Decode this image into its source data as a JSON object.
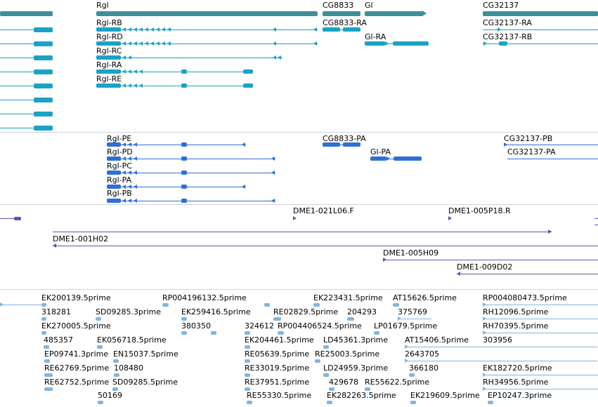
{
  "colors": {
    "gene": "#3e8f9a",
    "transcript": "#1aa3c4",
    "protein": "#2f6fd6",
    "clone": "#6a4fb0",
    "est": "#7fb6e2",
    "separator": "#cfd4dc"
  },
  "genes": {
    "items": [
      {
        "label": "Rgl"
      },
      {
        "label": "CG8833"
      },
      {
        "label": "Gl"
      },
      {
        "label": "CG32137"
      }
    ]
  },
  "transcripts": {
    "items": [
      {
        "label": "Rgl-RB"
      },
      {
        "label": "Rgl-RD"
      },
      {
        "label": "Rgl-RC"
      },
      {
        "label": "Rgl-RA"
      },
      {
        "label": "Rgl-RE"
      },
      {
        "label": "CG8833-RA"
      },
      {
        "label": "Gl-RA"
      },
      {
        "label": "CG32137-RA"
      },
      {
        "label": "CG32137-RB"
      }
    ]
  },
  "proteins": {
    "items": [
      {
        "label": "Rgl-PE"
      },
      {
        "label": "Rgl-PD"
      },
      {
        "label": "Rgl-PC"
      },
      {
        "label": "Rgl-PA"
      },
      {
        "label": "Rgl-PB"
      },
      {
        "label": "CG8833-PA"
      },
      {
        "label": "Gl-PA"
      },
      {
        "label": "CG32137-PB"
      },
      {
        "label": "CG32137-PA"
      }
    ]
  },
  "clones": {
    "items": [
      {
        "label": "DME1-021L06.F"
      },
      {
        "label": "DME1-005P18.R"
      },
      {
        "label": "DME1-001H02"
      },
      {
        "label": "DME1-005H09"
      },
      {
        "label": "DME1-009D02"
      }
    ]
  },
  "ests": {
    "items": [
      {
        "label": "EK200139.5prime"
      },
      {
        "label": "RP004196132.5prime"
      },
      {
        "label": "EK223431.5prime"
      },
      {
        "label": "AT15626.5prime"
      },
      {
        "label": "RP004080473.5prime"
      },
      {
        "label": "318281"
      },
      {
        "label": "SD09285.3prime"
      },
      {
        "label": "EK259416.5prime"
      },
      {
        "label": "RE02829.5prime"
      },
      {
        "label": "204293"
      },
      {
        "label": "375769"
      },
      {
        "label": "RH12096.5prime"
      },
      {
        "label": "EK270005.5prime"
      },
      {
        "label": "380350"
      },
      {
        "label": "324612"
      },
      {
        "label": "RP004406524.5prime"
      },
      {
        "label": "LP01679.5prime"
      },
      {
        "label": "RH70395.5prime"
      },
      {
        "label": "485357"
      },
      {
        "label": "EK056718.5prime"
      },
      {
        "label": "EK204461.5prime"
      },
      {
        "label": "LD45361.3prime"
      },
      {
        "label": "AT15406.5prime"
      },
      {
        "label": "303956"
      },
      {
        "label": "EP09741.3prime"
      },
      {
        "label": "EN15037.5prime"
      },
      {
        "label": "RE05639.5prime"
      },
      {
        "label": "RE25003.5prime"
      },
      {
        "label": "2643705"
      },
      {
        "label": "RE62769.5prime"
      },
      {
        "label": "108480"
      },
      {
        "label": "RE33019.5prime"
      },
      {
        "label": "LD24959.3prime"
      },
      {
        "label": "366180"
      },
      {
        "label": "EK182720.5prime"
      },
      {
        "label": "RE62752.5prime"
      },
      {
        "label": "SD09285.5prime"
      },
      {
        "label": "RE37951.5prime"
      },
      {
        "label": "429678"
      },
      {
        "label": "RE55622.5prime"
      },
      {
        "label": "RH34956.5prime"
      },
      {
        "label": "50169"
      },
      {
        "label": "RE55330.5prime"
      },
      {
        "label": "EK282263.5prime"
      },
      {
        "label": "EK219609.5prime"
      },
      {
        "label": "EP10247.3prime"
      }
    ]
  }
}
